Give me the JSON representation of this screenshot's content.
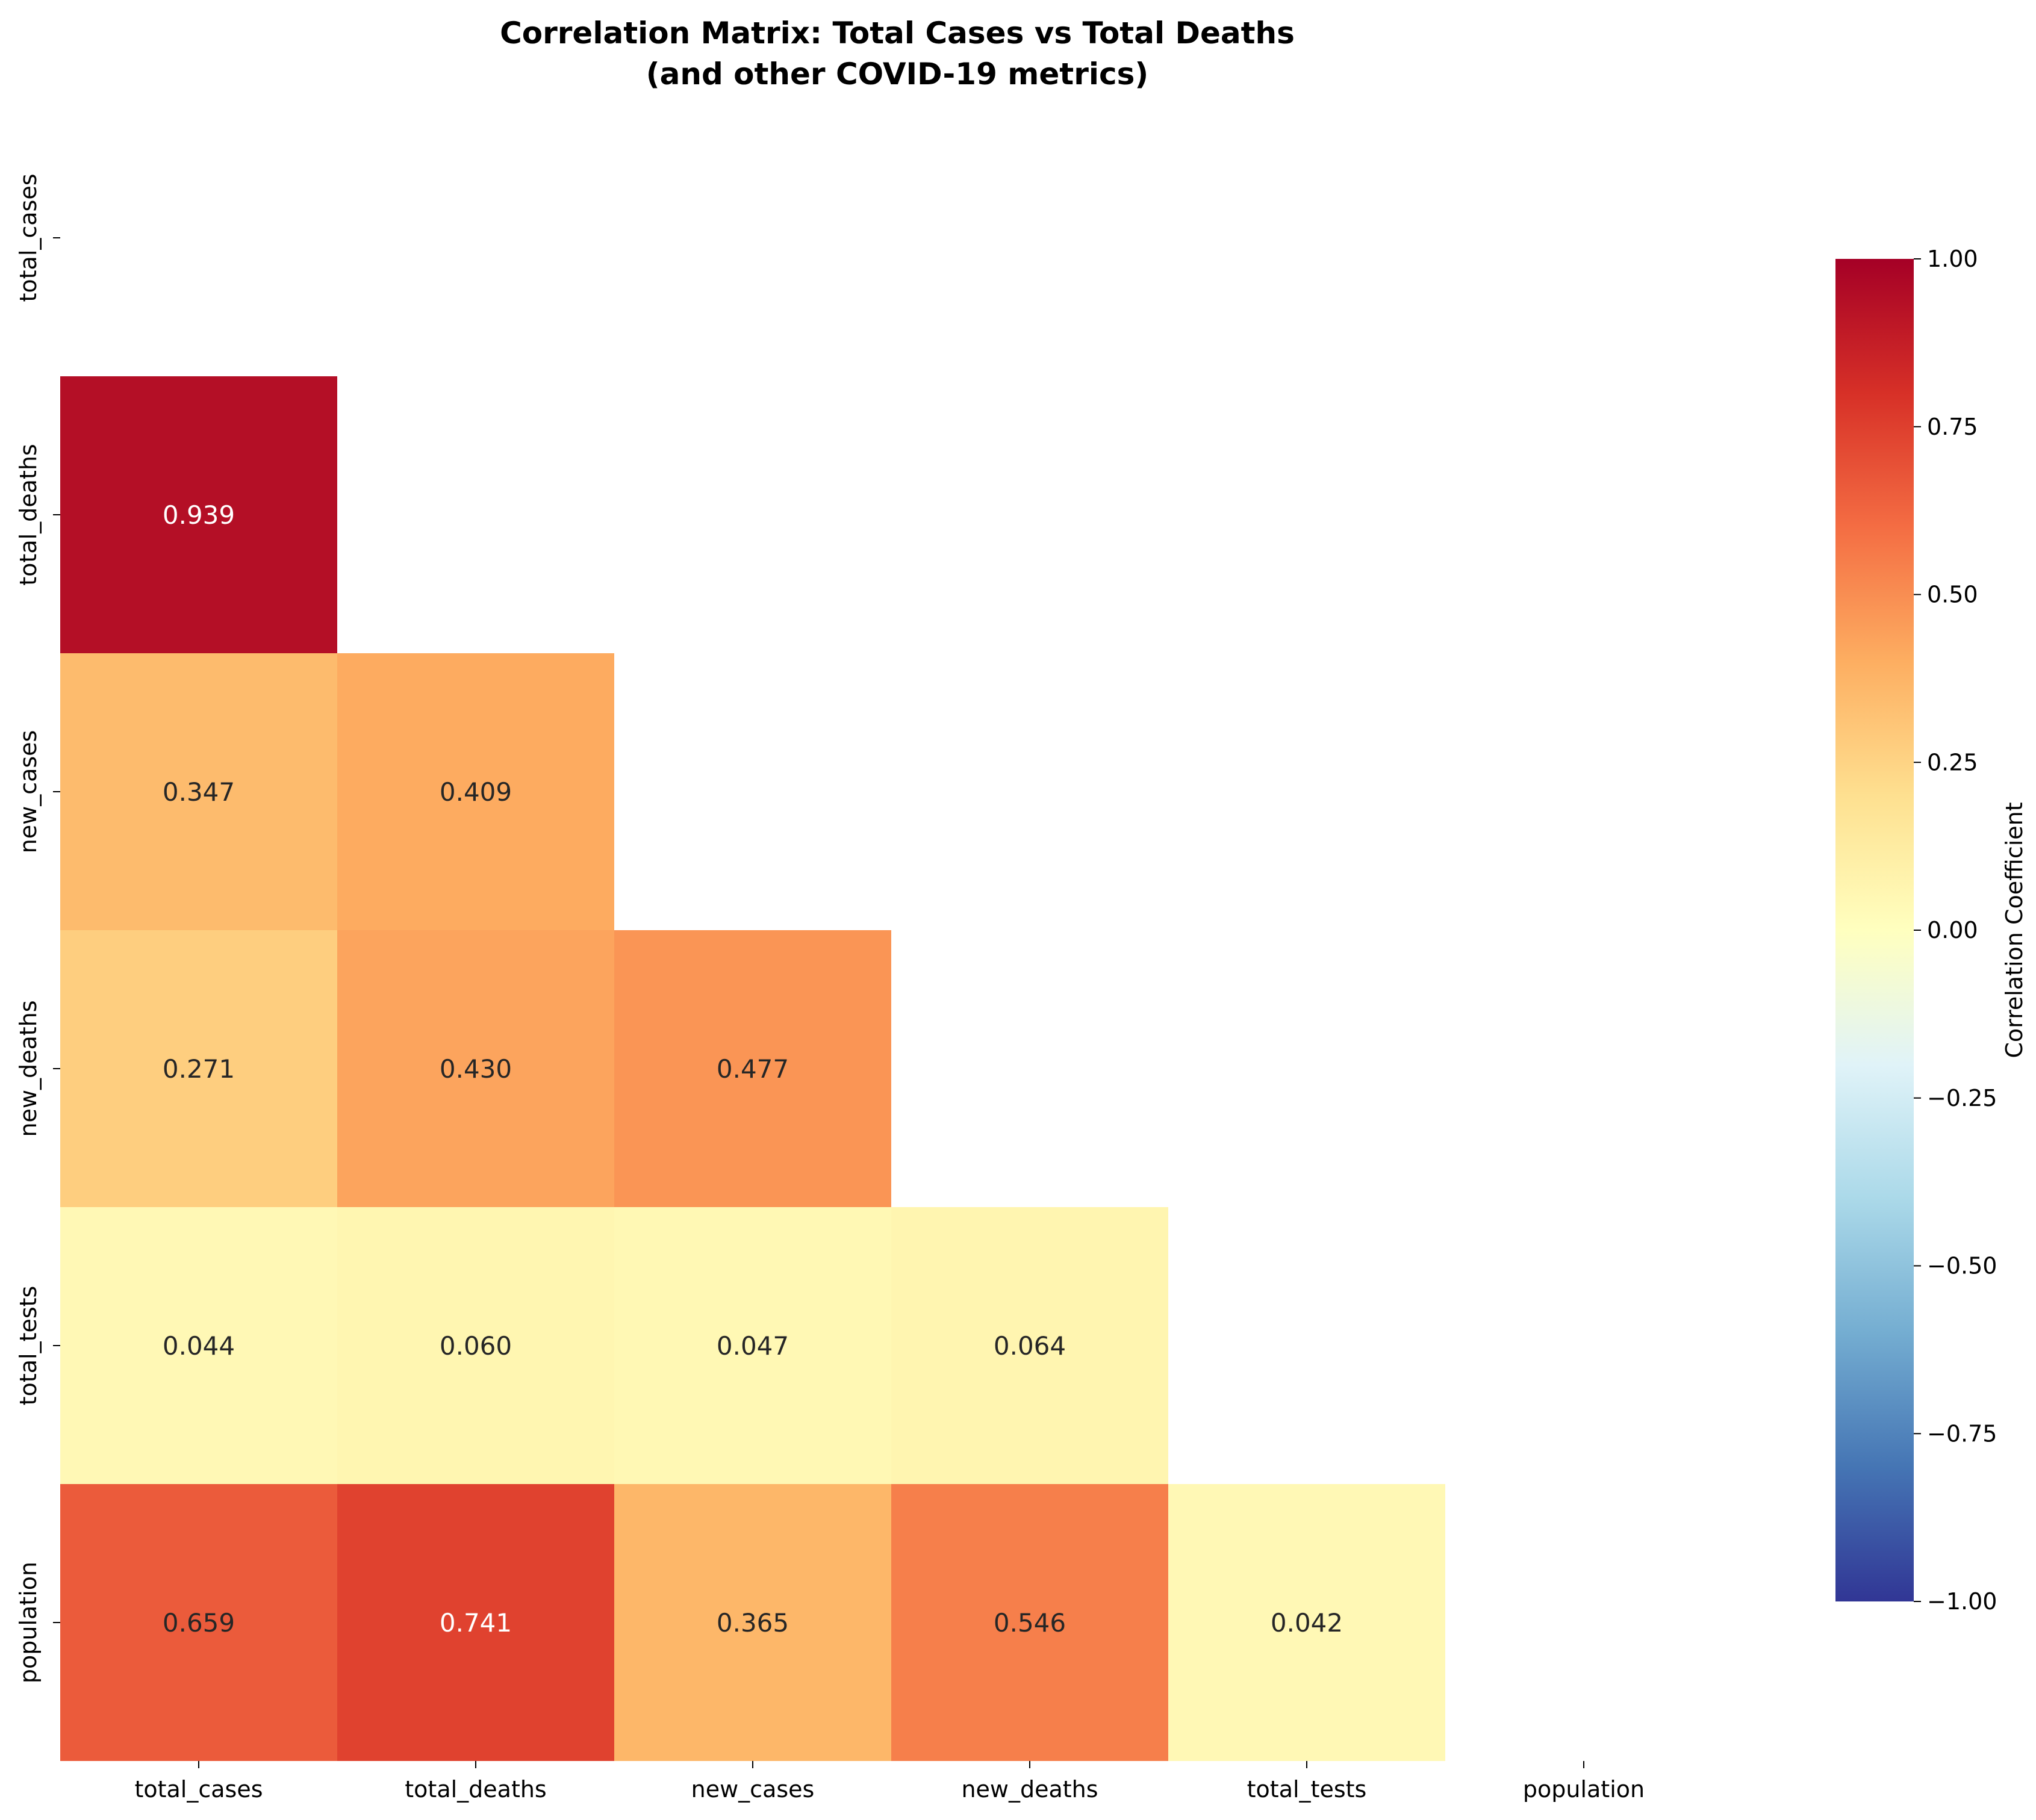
{
  "chart_data": {
    "type": "heatmap",
    "title_lines": [
      "Correlation Matrix: Total Cases vs Total Deaths",
      "(and other COVID-19 metrics)"
    ],
    "variables": [
      "total_cases",
      "total_deaths",
      "new_cases",
      "new_deaths",
      "total_tests",
      "population"
    ],
    "mask": "upper-triangle-including-diagonal",
    "matrix": [
      [
        null,
        null,
        null,
        null,
        null,
        null
      ],
      [
        0.939,
        null,
        null,
        null,
        null,
        null
      ],
      [
        0.347,
        0.409,
        null,
        null,
        null,
        null
      ],
      [
        0.271,
        0.43,
        0.477,
        null,
        null,
        null
      ],
      [
        0.044,
        0.06,
        0.047,
        0.064,
        null,
        null
      ],
      [
        0.659,
        0.741,
        0.365,
        0.546,
        0.042,
        null
      ]
    ],
    "cell_labels": [
      [
        null,
        null,
        null,
        null,
        null,
        null
      ],
      [
        "0.939",
        null,
        null,
        null,
        null,
        null
      ],
      [
        "0.347",
        "0.409",
        null,
        null,
        null,
        null
      ],
      [
        "0.271",
        "0.430",
        "0.477",
        null,
        null,
        null
      ],
      [
        "0.044",
        "0.060",
        "0.047",
        "0.064",
        null,
        null
      ],
      [
        "0.659",
        "0.741",
        "0.365",
        "0.546",
        "0.042",
        null
      ]
    ],
    "colorbar": {
      "label": "Correlation Coefficient",
      "range": [
        -1.0,
        1.0
      ],
      "ticks": [
        "1.00",
        "0.75",
        "0.50",
        "0.25",
        "0.00",
        "−0.25",
        "−0.50",
        "−0.75",
        "−1.00"
      ],
      "tick_values": [
        1.0,
        0.75,
        0.5,
        0.25,
        0.0,
        -0.25,
        -0.5,
        -0.75,
        -1.0
      ],
      "colormap": "RdYlBu_r",
      "stops": [
        "#313695",
        "#4575b4",
        "#74add1",
        "#abd9e9",
        "#e0f3f8",
        "#ffffbf",
        "#fee090",
        "#fdae61",
        "#f46d43",
        "#d73027",
        "#a50026"
      ]
    },
    "grid": false
  }
}
